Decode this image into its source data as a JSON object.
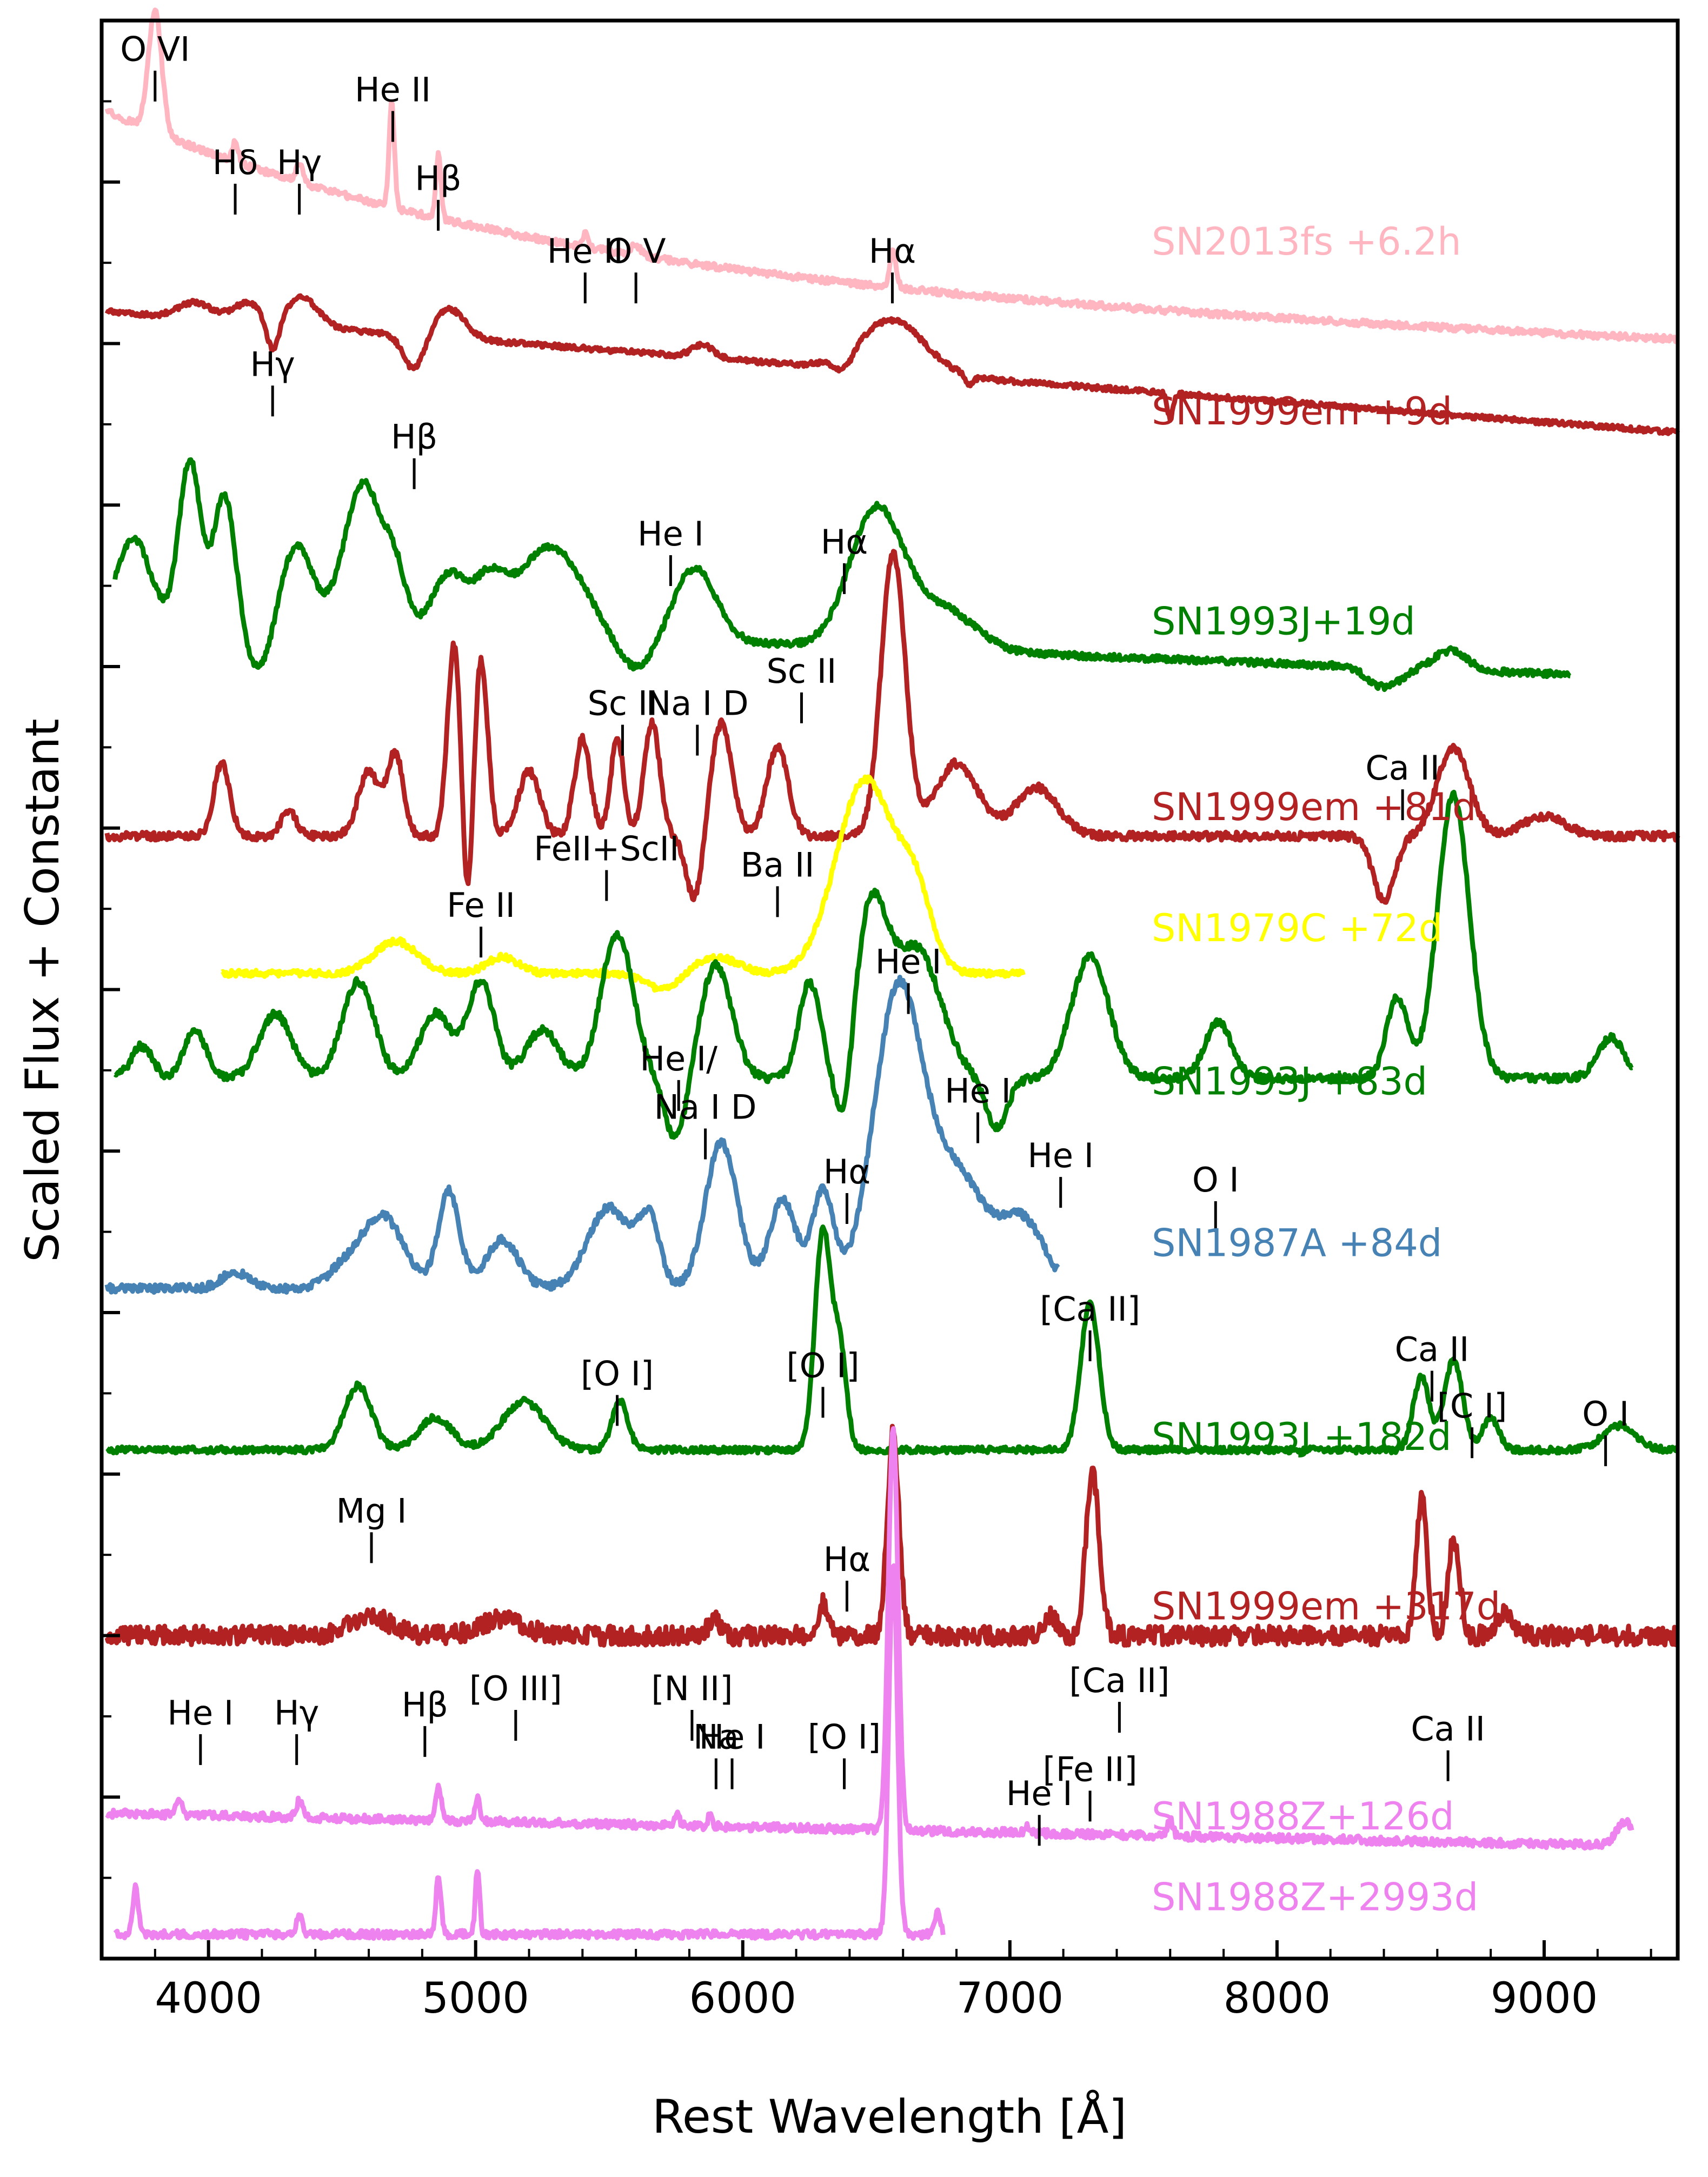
{
  "chart_data": {
    "type": "line",
    "title": "",
    "xlabel": "Rest Wavelength [Å]",
    "ylabel": "Scaled Flux + Constant",
    "xlim": [
      3600,
      9500
    ],
    "ylim": [
      0,
      12
    ],
    "xticks": [
      4000,
      5000,
      6000,
      7000,
      8000,
      9000
    ],
    "series": [
      {
        "name": "SN2013fs +6.2h",
        "color": "#ffb6c1",
        "shape": "sn2013fs",
        "offset": 10.35,
        "xmin": 3620,
        "xmax": 9500
      },
      {
        "name": "SN1999em +9d",
        "color": "#b22222",
        "shape": "sn1999em_9",
        "offset": 9.3,
        "xmin": 3620,
        "xmax": 9500
      },
      {
        "name": "SN1993J+19d",
        "color": "#008000",
        "shape": "sn1993j_19",
        "offset": 8.0,
        "xmin": 3650,
        "xmax": 9100
      },
      {
        "name": "SN1999em +81d",
        "color": "#b22222",
        "shape": "sn1999em_81",
        "offset": 6.85,
        "xmin": 3620,
        "xmax": 9500
      },
      {
        "name": "SN1979C +72d",
        "color": "#ffff00",
        "shape": "sn1979c",
        "offset": 6.1,
        "xmin": 4050,
        "xmax": 7050
      },
      {
        "name": "SN1993J +83d",
        "color": "#008000",
        "shape": "sn1993j_83",
        "offset": 5.15,
        "xmin": 3650,
        "xmax": 9330
      },
      {
        "name": "SN1987A +84d",
        "color": "#4682b4",
        "shape": "sn1987a",
        "offset": 4.15,
        "xmin": 3620,
        "xmax": 7180
      },
      {
        "name": "SN1993J +182d",
        "color": "#008000",
        "shape": "sn1993j_182",
        "offset": 2.95,
        "xmin": 3620,
        "xmax": 9500
      },
      {
        "name": "SN1999em +317d",
        "color": "#b22222",
        "shape": "sn1999em_317",
        "offset": 1.9,
        "xmin": 3620,
        "xmax": 9500
      },
      {
        "name": "SN1988Z+126d",
        "color": "#ee82ee",
        "shape": "sn1988z_126",
        "offset": 0.6,
        "xmin": 3620,
        "xmax": 9330
      },
      {
        "name": "SN1988Z+2993d",
        "color": "#ee82ee",
        "shape": "sn1988z_2993",
        "offset": 0.1,
        "xmin": 3650,
        "xmax": 6750
      }
    ],
    "line_ids": [
      {
        "text": "O VI",
        "x": 3800,
        "y": 11.75
      },
      {
        "text": "Hδ",
        "x": 4100,
        "y": 11.05
      },
      {
        "text": "Hγ",
        "x": 4340,
        "y": 11.05
      },
      {
        "text": "He II",
        "x": 4690,
        "y": 11.5
      },
      {
        "text": "Hβ",
        "x": 4860,
        "y": 10.95
      },
      {
        "text": "He II",
        "x": 5410,
        "y": 10.5
      },
      {
        "text": "O V",
        "x": 5600,
        "y": 10.5
      },
      {
        "text": "Hα",
        "x": 6560,
        "y": 10.5
      },
      {
        "text": "Hγ",
        "x": 4240,
        "y": 9.8
      },
      {
        "text": "Hβ",
        "x": 4770,
        "y": 9.35
      },
      {
        "text": "He I",
        "x": 5730,
        "y": 8.75
      },
      {
        "text": "Hα",
        "x": 6380,
        "y": 8.7
      },
      {
        "text": "Sc II",
        "x": 5550,
        "y": 7.7
      },
      {
        "text": "Na I D",
        "x": 5830,
        "y": 7.7
      },
      {
        "text": "Sc II",
        "x": 6220,
        "y": 7.9
      },
      {
        "text": "Ca II",
        "x": 8470,
        "y": 7.3
      },
      {
        "text": "Ba II",
        "x": 6130,
        "y": 6.7
      },
      {
        "text": "Fe II",
        "x": 5020,
        "y": 6.45
      },
      {
        "text": "FeII+ScII",
        "x": 5490,
        "y": 6.8
      },
      {
        "text": "He I",
        "x": 6620,
        "y": 6.1
      },
      {
        "text": "He I/",
        "x": 5760,
        "y": 5.5
      },
      {
        "text": "Na I D",
        "x": 5860,
        "y": 5.2
      },
      {
        "text": "He I",
        "x": 6880,
        "y": 5.3
      },
      {
        "text": "He I",
        "x": 7190,
        "y": 4.9
      },
      {
        "text": "Hα",
        "x": 6390,
        "y": 4.8
      },
      {
        "text": "O I",
        "x": 7770,
        "y": 4.75
      },
      {
        "text": "[Ca II]",
        "x": 7300,
        "y": 3.95
      },
      {
        "text": "Ca II",
        "x": 8580,
        "y": 3.7
      },
      {
        "text": "[O I]",
        "x": 5530,
        "y": 3.55
      },
      {
        "text": "[O I]",
        "x": 6300,
        "y": 3.6
      },
      {
        "text": "[C I]",
        "x": 8730,
        "y": 3.35
      },
      {
        "text": "O I",
        "x": 9230,
        "y": 3.3
      },
      {
        "text": "Mg I",
        "x": 4610,
        "y": 2.7
      },
      {
        "text": "Hα",
        "x": 6390,
        "y": 2.4
      },
      {
        "text": "[Ca II]",
        "x": 7410,
        "y": 1.65
      },
      {
        "text": "Na",
        "x": 5900,
        "y": 1.3
      },
      {
        "text": "[O I]",
        "x": 6380,
        "y": 1.3
      },
      {
        "text": "[Fe II]",
        "x": 7300,
        "y": 1.1
      },
      {
        "text": "Ca II",
        "x": 8640,
        "y": 1.35
      },
      {
        "text": "He I",
        "x": 3970,
        "y": 1.45
      },
      {
        "text": "Hγ",
        "x": 4330,
        "y": 1.45
      },
      {
        "text": "Hβ",
        "x": 4810,
        "y": 1.5
      },
      {
        "text": "[O III]",
        "x": 5150,
        "y": 1.6
      },
      {
        "text": "[N II]",
        "x": 5810,
        "y": 1.6
      },
      {
        "text": "He I",
        "x": 5960,
        "y": 1.3
      },
      {
        "text": "He I",
        "x": 7110,
        "y": 0.95
      }
    ]
  }
}
